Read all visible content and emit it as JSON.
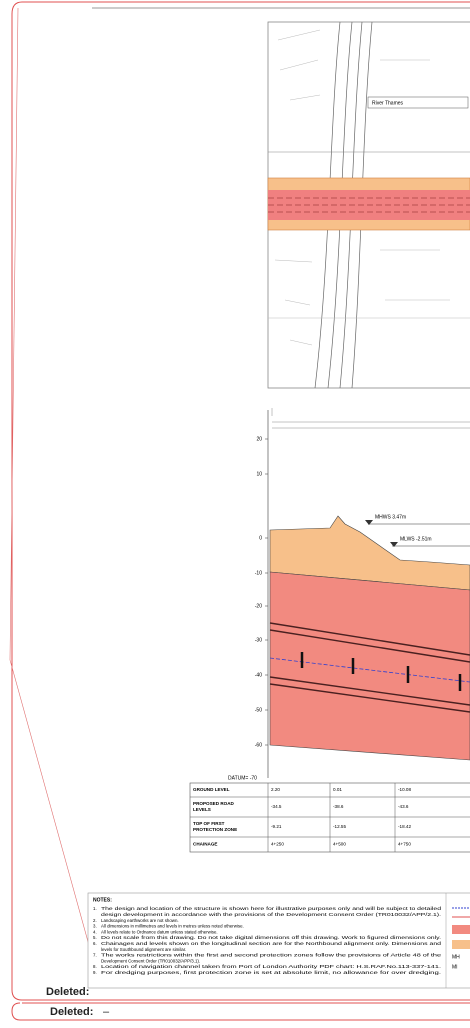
{
  "plan": {
    "label": "River Thames"
  },
  "section": {
    "levels": [
      "20",
      "10",
      "0",
      "-10",
      "-20",
      "-30",
      "-40",
      "-50",
      "-60"
    ],
    "datum": "DATUM= -70",
    "annotations": [
      "MHWS 3.47m",
      "MLWS -2.51m"
    ]
  },
  "table": {
    "rows": [
      [
        "GROUND LEVEL",
        "2.20",
        "0.01",
        "-10.08"
      ],
      [
        "PROPOSED ROAD LEVELS",
        "-34.5",
        "-38.6",
        "-43.6"
      ],
      [
        "TOP OF FIRST PROTECTION ZONE",
        "-9.21",
        "-12.55",
        "-18.42"
      ],
      [
        "CHAINAGE",
        "4+250",
        "4+500",
        "4+750"
      ]
    ]
  },
  "notes": {
    "title": "NOTES:",
    "items": [
      {
        "n": "1.",
        "lines": [
          "The design and location of the structure is shown here for illustrative purposes only and will be subject to detailed",
          "design development in accordance with the provisions of the Development Consent Order (TR010032/APP/2.1)."
        ]
      },
      {
        "n": "2.",
        "lines": [
          "Landscaping earthworks are not shown."
        ]
      },
      {
        "n": "3.",
        "lines": [
          "All dimensions in millimetres and levels in metres unless noted otherwise."
        ]
      },
      {
        "n": "4.",
        "lines": [
          "All levels relate to Ordnance datum unless stated otherwise."
        ]
      },
      {
        "n": "5.",
        "lines": [
          "Do not scale from this drawing. Do not take digital dimensions off this drawing. Work to figured dimensions only."
        ]
      },
      {
        "n": "6.",
        "lines": [
          "Chainages and levels shown on the longitudinal section are for the Northbound alignment only. Dimensions and",
          "levels for Southbound alignment are similar."
        ]
      },
      {
        "n": "7.",
        "lines": [
          "The works restrictions within the first and second protection zones follow the provisions of Article 48 of the",
          "Development Consent Order (TR010032/APP/3.1)."
        ]
      },
      {
        "n": "8.",
        "lines": [
          "Location of navigation channel taken from Port of London Authority PDF chart: H.S.RAF.No.113-337-141."
        ]
      },
      {
        "n": "9.",
        "lines": [
          "For dredging purposes, first protection zone is set at absolute limit, no allowance for over dredging."
        ]
      }
    ]
  },
  "legend": [
    "MH",
    "MI"
  ],
  "comments": [
    {
      "label": "Deleted:"
    },
    {
      "label": "Deleted:",
      "text": "–"
    }
  ]
}
